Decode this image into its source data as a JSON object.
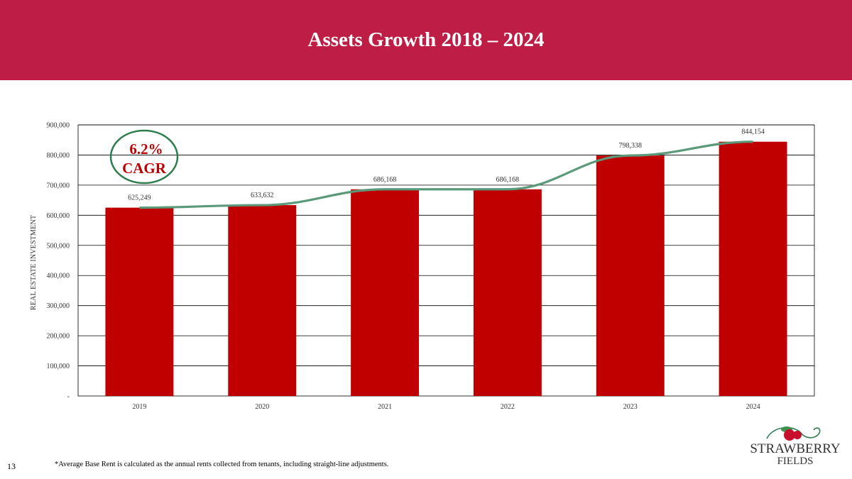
{
  "header": {
    "title": "Assets Growth 2018 – 2024"
  },
  "colors": {
    "banner": "#be1e45",
    "bar": "#c00000",
    "trend_line": "#5a9a7a",
    "cagr_circle": "#2e7d4f",
    "cagr_text": "#c00000"
  },
  "annotation": {
    "cagr_value": "6.2%",
    "cagr_label": "CAGR"
  },
  "chart_data": {
    "type": "bar",
    "categories": [
      "2019",
      "2020",
      "2021",
      "2022",
      "2023",
      "2024"
    ],
    "series": [
      {
        "values": [
          625249,
          633632,
          686168,
          686168,
          798338,
          844154
        ]
      }
    ],
    "data_labels": [
      "625,249",
      "633,632",
      "686,168",
      "686,168",
      "798,338",
      "844,154"
    ],
    "overlay_line": true,
    "ylabel": "REAL ESTATE  INVESTMENT",
    "xlabel": "",
    "ylim": [
      0,
      900000
    ],
    "yticks": [
      0,
      100000,
      200000,
      300000,
      400000,
      500000,
      600000,
      700000,
      800000,
      900000
    ],
    "ytick_labels": [
      "-",
      "100,000",
      "200,000",
      "300,000",
      "400,000",
      "500,000",
      "600,000",
      "700,000",
      "800,000",
      "900,000"
    ],
    "grid": true,
    "legend": "none"
  },
  "footer": {
    "page_number": "13",
    "footnote": "*Average Base Rent is calculated as the annual rents collected from tenants, including straight-line adjustments."
  },
  "logo": {
    "line1": "STRAWBERRY",
    "line2": "FIELDS"
  }
}
